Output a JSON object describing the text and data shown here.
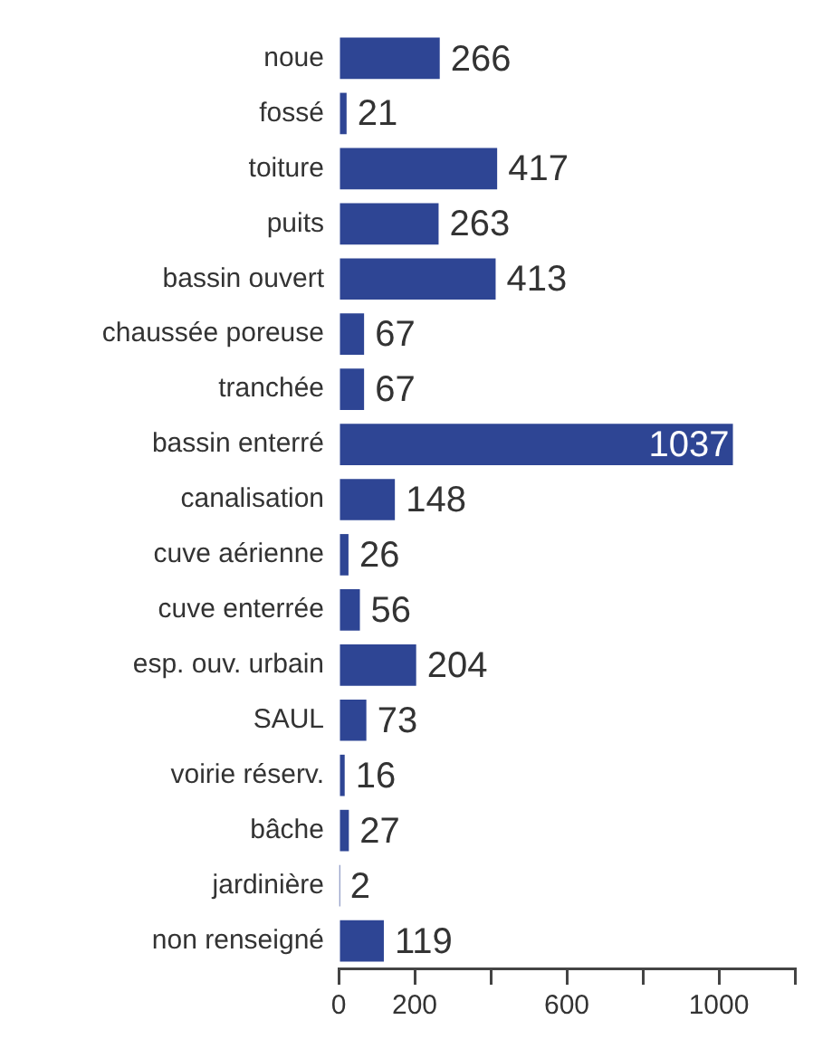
{
  "chart_data": {
    "type": "bar",
    "orientation": "horizontal",
    "categories": [
      "noue",
      "fossé",
      "toiture",
      "puits",
      "bassin ouvert",
      "chaussée poreuse",
      "tranchée",
      "bassin enterré",
      "canalisation",
      "cuve aérienne",
      "cuve enterrée",
      "esp. ouv. urbain",
      "SAUL",
      "voirie réserv.",
      "bâche",
      "jardinière",
      "non renseigné"
    ],
    "values": [
      266,
      21,
      417,
      263,
      413,
      67,
      67,
      1037,
      148,
      26,
      56,
      204,
      73,
      16,
      27,
      2,
      119
    ],
    "color": "#2e4594",
    "xlim": [
      0,
      1200
    ],
    "xticks": [
      0,
      200,
      {
        "value": 400,
        "label": null
      },
      600,
      {
        "value": 800,
        "label": null
      },
      1000,
      {
        "value": 1200,
        "label": null
      }
    ],
    "grid": false,
    "legend": false,
    "data_labels": true
  }
}
